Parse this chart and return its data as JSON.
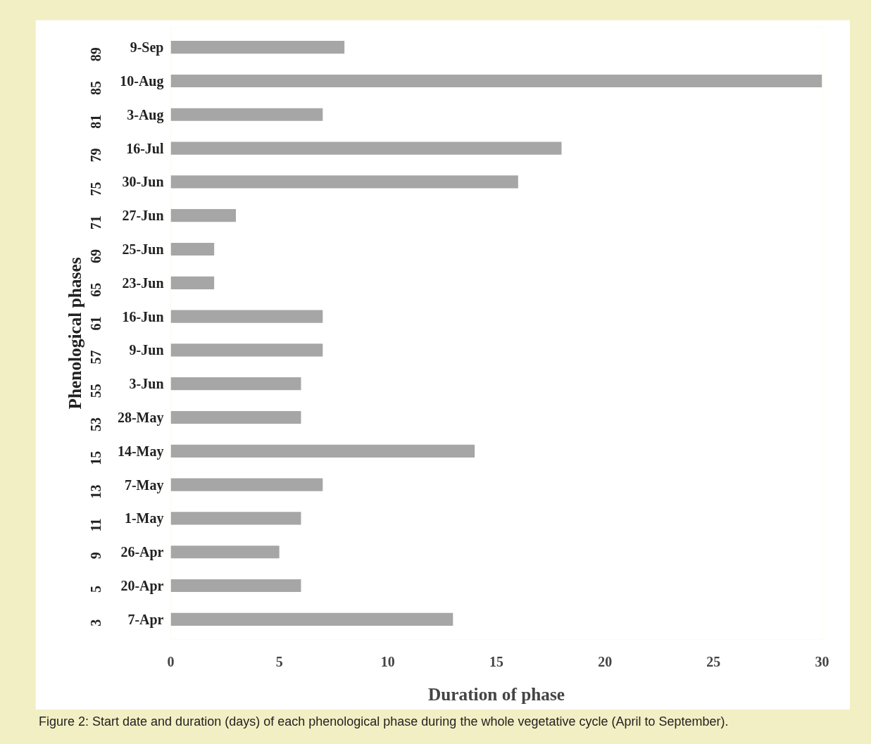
{
  "chart_data": {
    "type": "bar",
    "orientation": "horizontal",
    "categories": [
      "89 9-Sep",
      "85 10-Aug",
      "81 3-Aug",
      "79 16-Jul",
      "75 30-Jun",
      "71 27-Jun",
      "69 25-Jun",
      "65 23-Jun",
      "61 16-Jun",
      "57 9-Jun",
      "55 3-Jun",
      "53 28-May",
      "15 14-May",
      "13 7-May",
      "11 1-May",
      "9 26-Apr",
      "5 20-Apr",
      "3 7-Apr"
    ],
    "values": [
      8,
      30,
      7,
      18,
      16,
      3,
      2,
      2,
      7,
      7,
      6,
      6,
      14,
      7,
      6,
      5,
      6,
      13
    ],
    "color": "#a6a6a6",
    "xlim": [
      0,
      30
    ],
    "xticks": [
      0,
      5,
      10,
      15,
      20,
      25,
      30
    ],
    "xlabel": "Duration of phase",
    "ylabel": "Phenological phases",
    "annotations": [
      "Figure 2: Start date and duration (days) of each phenological phase during the whole vegetative cycle (April to September)."
    ]
  }
}
